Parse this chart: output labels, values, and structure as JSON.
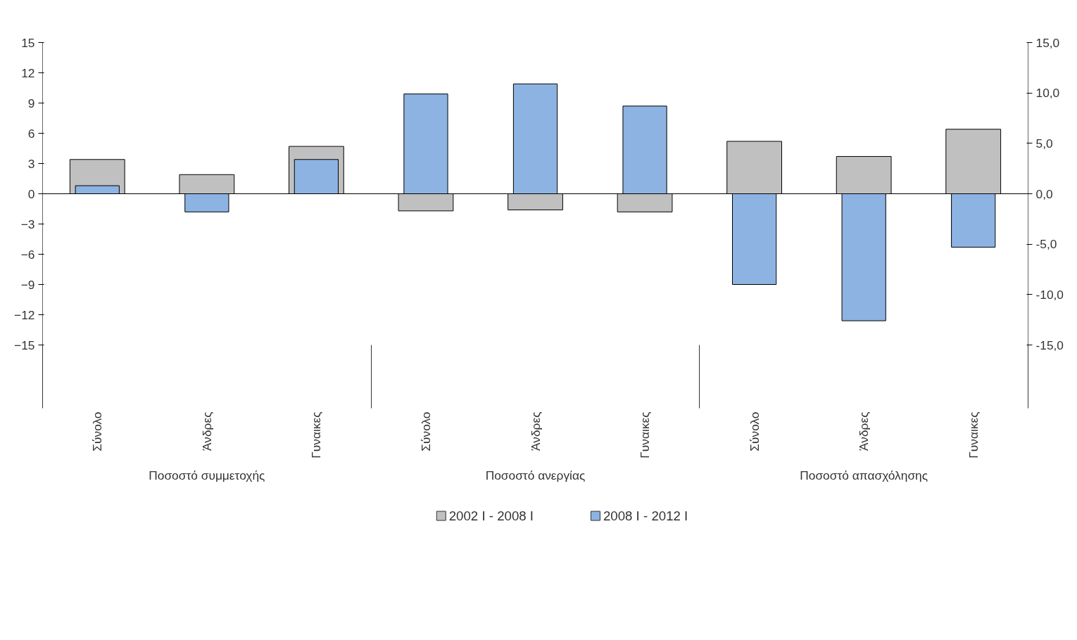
{
  "chart_data": {
    "type": "bar",
    "categories": [
      "Σύνολο",
      "Άνδρες",
      "Γυναικες",
      "Σύνολο",
      "Άνδρες",
      "Γυναικες",
      "Σύνολο",
      "Άνδρες",
      "Γυναικες"
    ],
    "series": [
      {
        "name": "2002 I - 2008 I",
        "color": "#c0c0c0",
        "values": [
          3.4,
          1.9,
          4.7,
          -1.7,
          -1.6,
          -1.8,
          5.2,
          3.7,
          6.4
        ]
      },
      {
        "name": "2008 I - 2012 I",
        "color": "#8db3e2",
        "values": [
          0.8,
          -1.8,
          3.4,
          9.9,
          10.9,
          8.7,
          -9.0,
          -12.6,
          -5.3
        ]
      }
    ],
    "annotations": [
      "Ποσοστό συμμετοχής",
      "Ποσοστό ανεργίας",
      "Ποσοστό απασχόλησης"
    ],
    "ylim": [
      -15,
      15
    ],
    "yticks": [
      15,
      12,
      9,
      6,
      3,
      0,
      -3,
      -6,
      -9,
      -12,
      -15
    ],
    "y2lim": [
      -15,
      15
    ],
    "y2ticks": [
      {
        "value": 15,
        "label": "15,0"
      },
      {
        "value": 10,
        "label": "10,0"
      },
      {
        "value": 5,
        "label": "5,0"
      },
      {
        "value": 0,
        "label": "0,0"
      },
      {
        "value": -5,
        "label": "-5,0"
      },
      {
        "value": -10,
        "label": "-10,0"
      },
      {
        "value": -15,
        "label": "-15,0"
      }
    ],
    "ref_lines": [
      {
        "axis": "y",
        "value": 0,
        "color": "#000000"
      }
    ],
    "grid": false,
    "legend": "bottom"
  }
}
